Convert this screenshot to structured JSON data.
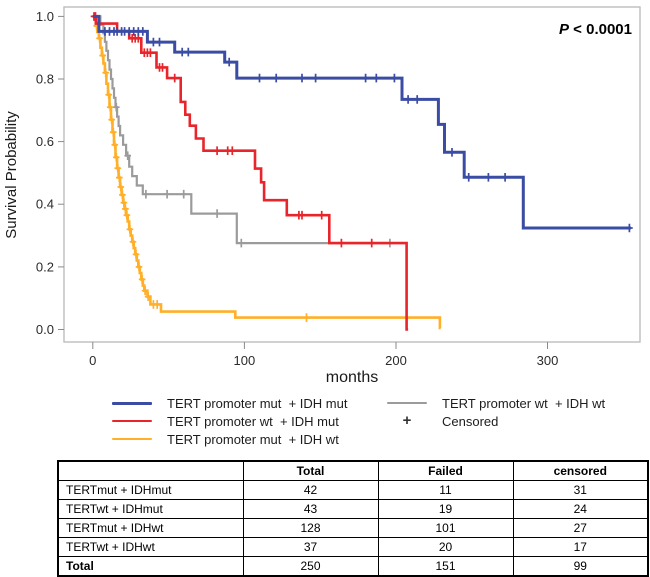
{
  "chart_data": {
    "type": "line",
    "subtype": "kaplan-meier-step",
    "title": "",
    "xlabel": "months",
    "ylabel": "Survival Probability",
    "annotation": "P < 0.0001",
    "xlim": [
      -19,
      361
    ],
    "ylim": [
      -0.04,
      1.03
    ],
    "xticks": [
      0,
      100,
      200,
      300
    ],
    "yticks": [
      0.0,
      0.2,
      0.4,
      0.6,
      0.8,
      1.0
    ],
    "grid": false,
    "legend_position": "below",
    "censored_label": "Censored",
    "censored_marker": "+",
    "series": [
      {
        "name": "TERT promoter mut  + IDH mut",
        "color": "#3a4ca4",
        "width": 3,
        "steps": [
          [
            0,
            1
          ],
          [
            4,
            0.952
          ],
          [
            36,
            0.918
          ],
          [
            54,
            0.886
          ],
          [
            87,
            0.854
          ],
          [
            95,
            0.803
          ],
          [
            204,
            0.735
          ],
          [
            228,
            0.655
          ],
          [
            232,
            0.566
          ],
          [
            245,
            0.486
          ],
          [
            284,
            0.324
          ]
        ],
        "end": 355,
        "censors": [
          [
            8,
            0.952
          ],
          [
            11,
            0.952
          ],
          [
            14,
            0.952
          ],
          [
            16,
            0.952
          ],
          [
            19,
            0.952
          ],
          [
            21,
            0.952
          ],
          [
            24,
            0.952
          ],
          [
            27,
            0.952
          ],
          [
            30,
            0.952
          ],
          [
            33,
            0.952
          ],
          [
            40,
            0.918
          ],
          [
            44,
            0.918
          ],
          [
            59,
            0.886
          ],
          [
            63,
            0.886
          ],
          [
            90,
            0.854
          ],
          [
            110,
            0.803
          ],
          [
            121,
            0.803
          ],
          [
            138,
            0.803
          ],
          [
            147,
            0.803
          ],
          [
            180,
            0.803
          ],
          [
            187,
            0.803
          ],
          [
            199,
            0.803
          ],
          [
            208,
            0.735
          ],
          [
            214,
            0.735
          ],
          [
            237,
            0.566
          ],
          [
            248,
            0.486
          ],
          [
            261,
            0.486
          ],
          [
            272,
            0.486
          ],
          [
            354,
            0.324
          ]
        ]
      },
      {
        "name": "TERT promoter wt  + IDH mut",
        "color": "#e8252b",
        "width": 2.6,
        "steps": [
          [
            0,
            1
          ],
          [
            2,
            0.977
          ],
          [
            16,
            0.953
          ],
          [
            24,
            0.93
          ],
          [
            32,
            0.884
          ],
          [
            42,
            0.837
          ],
          [
            49,
            0.803
          ],
          [
            58,
            0.727
          ],
          [
            61,
            0.686
          ],
          [
            64,
            0.651
          ],
          [
            68,
            0.61
          ],
          [
            73,
            0.571
          ],
          [
            107,
            0.514
          ],
          [
            111,
            0.47
          ],
          [
            113,
            0.413
          ],
          [
            128,
            0.365
          ],
          [
            156,
            0.276
          ],
          [
            207,
            0
          ]
        ],
        "end": 208,
        "censors": [
          [
            0.8,
            1
          ],
          [
            1.8,
            1
          ],
          [
            26,
            0.93
          ],
          [
            28,
            0.93
          ],
          [
            30,
            0.93
          ],
          [
            34,
            0.884
          ],
          [
            36,
            0.884
          ],
          [
            38,
            0.884
          ],
          [
            44,
            0.837
          ],
          [
            46,
            0.837
          ],
          [
            54,
            0.803
          ],
          [
            82,
            0.571
          ],
          [
            89,
            0.571
          ],
          [
            92,
            0.571
          ],
          [
            136,
            0.365
          ],
          [
            138,
            0.365
          ],
          [
            151,
            0.365
          ],
          [
            164,
            0.276
          ],
          [
            184,
            0.276
          ]
        ]
      },
      {
        "name": "TERT promoter mut  + IDH wt",
        "color": "#ffaf28",
        "width": 2.6,
        "steps": [
          [
            0,
            1
          ],
          [
            1,
            0.99
          ],
          [
            2,
            0.97
          ],
          [
            3,
            0.95
          ],
          [
            4,
            0.93
          ],
          [
            5,
            0.9
          ],
          [
            6,
            0.875
          ],
          [
            7,
            0.85
          ],
          [
            8,
            0.82
          ],
          [
            9,
            0.785
          ],
          [
            10,
            0.75
          ],
          [
            11,
            0.71
          ],
          [
            12,
            0.67
          ],
          [
            13,
            0.63
          ],
          [
            14,
            0.59
          ],
          [
            15,
            0.55
          ],
          [
            16,
            0.515
          ],
          [
            17,
            0.485
          ],
          [
            18,
            0.455
          ],
          [
            19,
            0.43
          ],
          [
            20,
            0.405
          ],
          [
            21,
            0.385
          ],
          [
            22,
            0.365
          ],
          [
            23,
            0.345
          ],
          [
            24,
            0.32
          ],
          [
            25,
            0.3
          ],
          [
            26,
            0.28
          ],
          [
            27,
            0.26
          ],
          [
            28,
            0.24
          ],
          [
            29,
            0.22
          ],
          [
            30,
            0.2
          ],
          [
            31,
            0.18
          ],
          [
            32,
            0.16
          ],
          [
            33,
            0.14
          ],
          [
            34,
            0.124
          ],
          [
            36,
            0.105
          ],
          [
            38,
            0.08
          ],
          [
            45,
            0.057
          ],
          [
            94,
            0.038
          ],
          [
            229,
            0.005
          ]
        ],
        "end": 229.5,
        "censors": [
          [
            2.5,
            0.97
          ],
          [
            4.5,
            0.93
          ],
          [
            6.5,
            0.875
          ],
          [
            8.5,
            0.82
          ],
          [
            10.5,
            0.75
          ],
          [
            11.5,
            0.71
          ],
          [
            12.5,
            0.67
          ],
          [
            13.5,
            0.63
          ],
          [
            14.5,
            0.59
          ],
          [
            15.5,
            0.55
          ],
          [
            16.5,
            0.515
          ],
          [
            17.5,
            0.485
          ],
          [
            18.5,
            0.455
          ],
          [
            19.5,
            0.43
          ],
          [
            20.5,
            0.405
          ],
          [
            21.5,
            0.385
          ],
          [
            22.5,
            0.365
          ],
          [
            24.5,
            0.32
          ],
          [
            26.5,
            0.28
          ],
          [
            28.5,
            0.24
          ],
          [
            30.5,
            0.2
          ],
          [
            32.5,
            0.16
          ],
          [
            34.5,
            0.124
          ],
          [
            36.5,
            0.105
          ],
          [
            40,
            0.08
          ],
          [
            42.5,
            0.08
          ],
          [
            141,
            0.038
          ]
        ]
      },
      {
        "name": "TERT promoter wt  + IDH wt",
        "color": "#9b9b9b",
        "width": 2.2,
        "steps": [
          [
            0,
            1
          ],
          [
            5,
            0.973
          ],
          [
            7,
            0.946
          ],
          [
            8,
            0.919
          ],
          [
            9,
            0.89
          ],
          [
            10,
            0.86
          ],
          [
            11,
            0.83
          ],
          [
            12,
            0.8
          ],
          [
            13,
            0.77
          ],
          [
            14,
            0.74
          ],
          [
            15,
            0.71
          ],
          [
            16,
            0.68
          ],
          [
            17,
            0.65
          ],
          [
            18,
            0.62
          ],
          [
            20,
            0.59
          ],
          [
            22,
            0.555
          ],
          [
            24,
            0.52
          ],
          [
            26,
            0.49
          ],
          [
            29,
            0.46
          ],
          [
            33,
            0.432
          ],
          [
            65,
            0.37
          ],
          [
            95,
            0.276
          ]
        ],
        "end": 197,
        "censors": [
          [
            15.5,
            0.71
          ],
          [
            23,
            0.555
          ],
          [
            35,
            0.432
          ],
          [
            49,
            0.432
          ],
          [
            60,
            0.432
          ],
          [
            82,
            0.37
          ],
          [
            98,
            0.276
          ],
          [
            196,
            0.276
          ]
        ]
      }
    ]
  },
  "table": {
    "headers": [
      "",
      "Total",
      "Failed",
      "censored"
    ],
    "rows": [
      [
        "TERTmut + IDHmut",
        "42",
        "11",
        "31"
      ],
      [
        "TERTwt + IDHmut",
        "43",
        "19",
        "24"
      ],
      [
        "TERTmut + IDHwt",
        "128",
        "101",
        "27"
      ],
      [
        "TERTwt + IDHwt",
        "37",
        "20",
        "17"
      ],
      [
        "Total",
        "250",
        "151",
        "99"
      ]
    ]
  }
}
